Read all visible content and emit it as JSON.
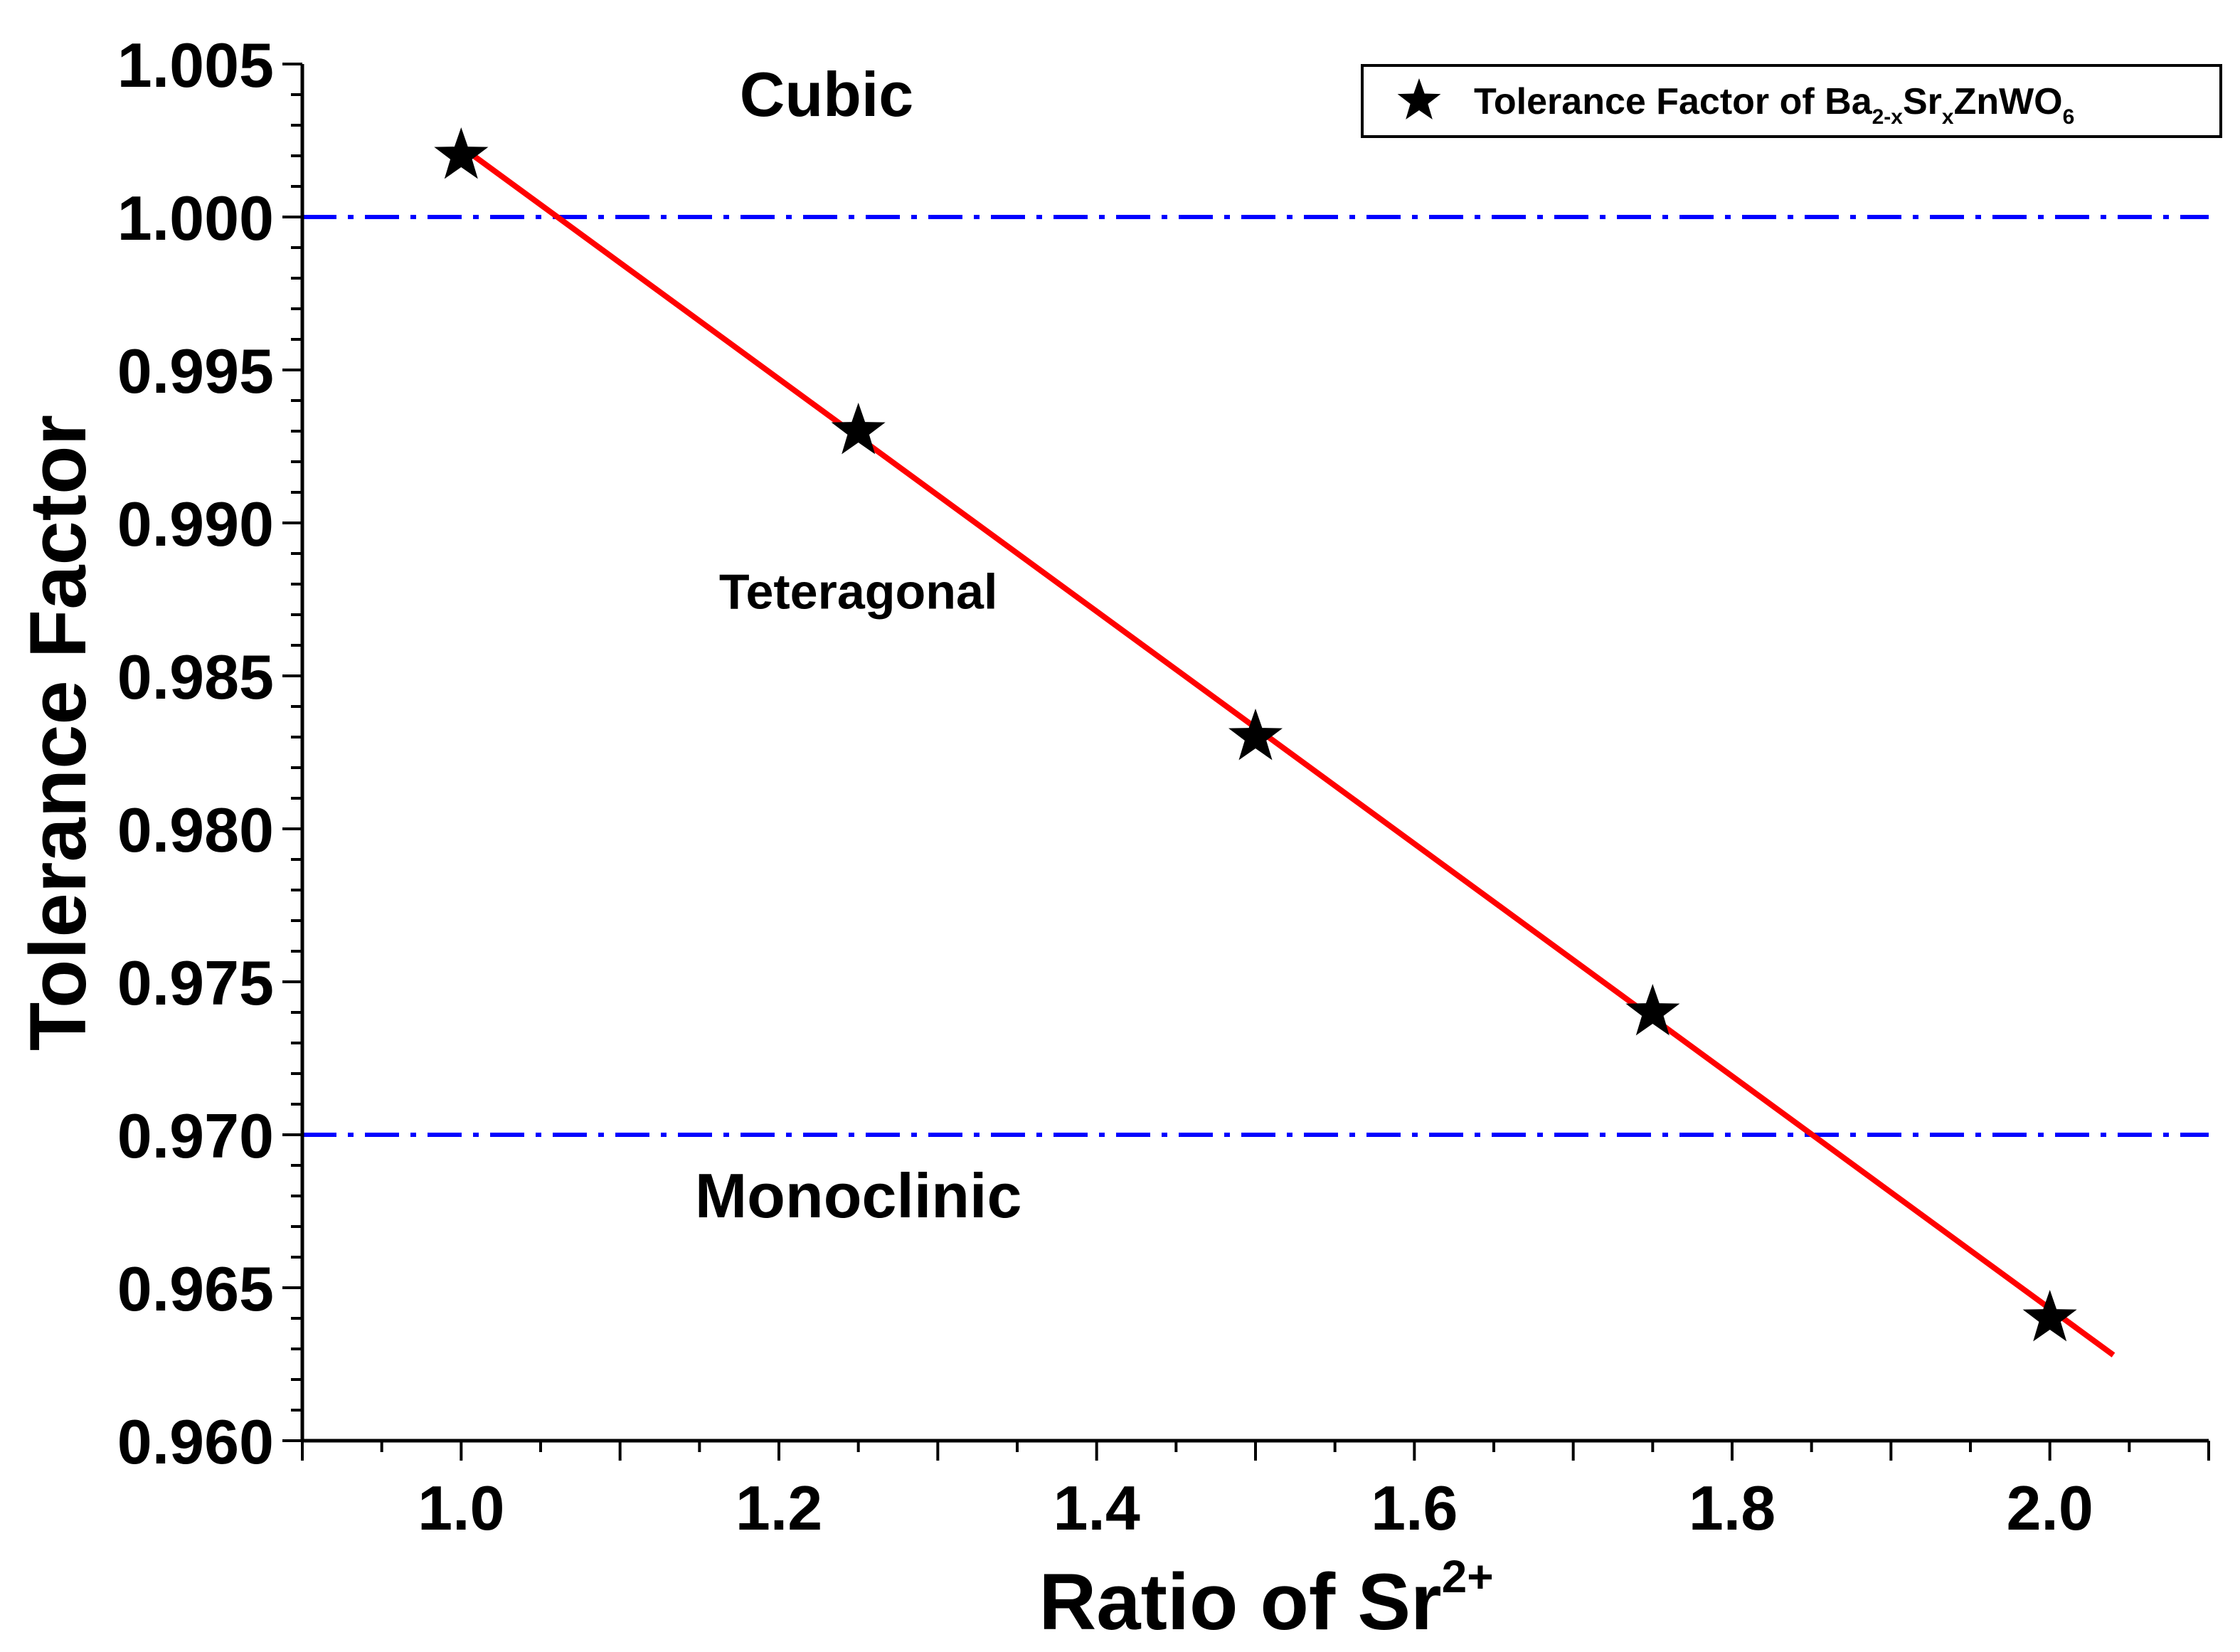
{
  "chart_data": {
    "type": "scatter",
    "title": "",
    "xlabel": "Ratio of Sr",
    "xlabel_sup": "2+",
    "ylabel": "Tolerance Factor",
    "xlim": [
      0.9,
      2.1
    ],
    "ylim": [
      0.96,
      1.005
    ],
    "x_ticks": [
      "1.0",
      "1.2",
      "1.4",
      "1.6",
      "1.8",
      "2.0"
    ],
    "y_ticks": [
      "0.960",
      "0.965",
      "0.970",
      "0.975",
      "0.980",
      "0.985",
      "0.990",
      "0.995",
      "1.000",
      "1.005"
    ],
    "series": [
      {
        "name": "Tolerance Factor of Ba2-xSrxZnWO6",
        "marker": "star",
        "color": "#000000",
        "x": [
          1.0,
          1.25,
          1.5,
          1.75,
          2.0
        ],
        "y": [
          1.002,
          0.993,
          0.983,
          0.974,
          0.964
        ]
      }
    ],
    "fit_line": {
      "color": "#ff0000",
      "x": [
        1.0,
        2.04
      ],
      "y": [
        1.0023,
        0.9628
      ]
    },
    "reference_lines": [
      {
        "y": 1.0,
        "color": "#0000ff",
        "style": "dash-dot"
      },
      {
        "y": 0.97,
        "color": "#0000ff",
        "style": "dash-dot"
      }
    ],
    "annotations": [
      {
        "text": "Cubic",
        "x": 1.23,
        "y": 1.0033
      },
      {
        "text": "Teteragonal",
        "x": 1.25,
        "y": 0.9872
      },
      {
        "text": "Monoclinic",
        "x": 1.25,
        "y": 0.9673
      }
    ],
    "legend": {
      "position": "top-right",
      "label_parts": [
        "Tolerance Factor of Ba",
        "2-x",
        "Sr",
        "x",
        "ZnWO",
        "6"
      ]
    }
  }
}
